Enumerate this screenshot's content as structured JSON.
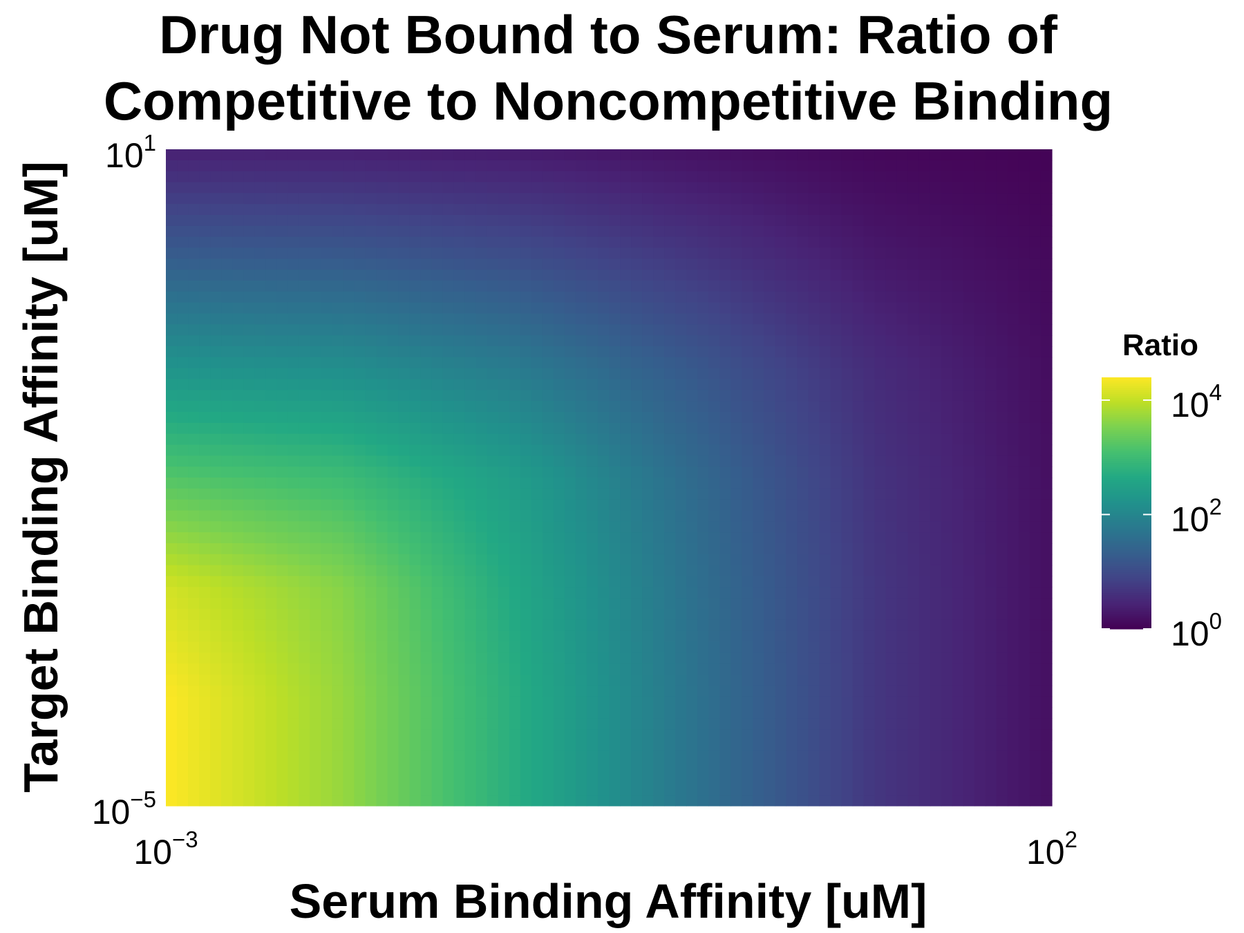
{
  "chart_data": {
    "type": "heatmap",
    "title_lines": [
      "Drug Not Bound to Serum: Ratio of",
      "Competitive to Noncompetitive Binding"
    ],
    "xlabel": "Serum Binding Affinity [uM]",
    "ylabel": "Target Binding Affinity [uM]",
    "x_scale": "log10",
    "y_scale": "log10",
    "xlim": [
      0.001,
      100
    ],
    "ylim": [
      1e-05,
      10
    ],
    "x_ticks": [
      {
        "value": 0.001,
        "base": "10",
        "exp": "−3"
      },
      {
        "value": 100,
        "base": "10",
        "exp": "2"
      }
    ],
    "y_ticks": [
      {
        "value": 1e-05,
        "base": "10",
        "exp": "−5"
      },
      {
        "value": 10,
        "base": "10",
        "exp": "1"
      }
    ],
    "colorbar": {
      "title": "Ratio",
      "scale": "log10",
      "colormap": "viridis",
      "range": [
        1,
        25000
      ],
      "ticks": [
        {
          "value": 1,
          "base": "10",
          "exp": "0"
        },
        {
          "value": 100,
          "base": "10",
          "exp": "2"
        },
        {
          "value": 10000,
          "base": "10",
          "exp": "4"
        }
      ]
    },
    "grid": false,
    "legend_placement": "right",
    "approx_log10_ratio_grid": {
      "log10_x": [
        -3,
        -2,
        -1,
        0,
        1,
        2
      ],
      "log10_y": [
        1,
        0,
        -1,
        -2,
        -3,
        -4,
        -5
      ],
      "log10_ratio": [
        [
          0.4,
          0.38,
          0.32,
          0.2,
          0.08,
          0.03
        ],
        [
          1.3,
          1.25,
          1.05,
          0.7,
          0.3,
          0.1
        ],
        [
          2.25,
          2.15,
          1.8,
          1.2,
          0.55,
          0.15
        ],
        [
          3.2,
          3.0,
          2.4,
          1.5,
          0.65,
          0.18
        ],
        [
          4.1,
          3.6,
          2.6,
          1.6,
          0.7,
          0.18
        ],
        [
          4.4,
          3.7,
          2.7,
          1.65,
          0.7,
          0.18
        ],
        [
          4.4,
          3.7,
          2.7,
          1.65,
          0.7,
          0.18
        ]
      ]
    }
  }
}
